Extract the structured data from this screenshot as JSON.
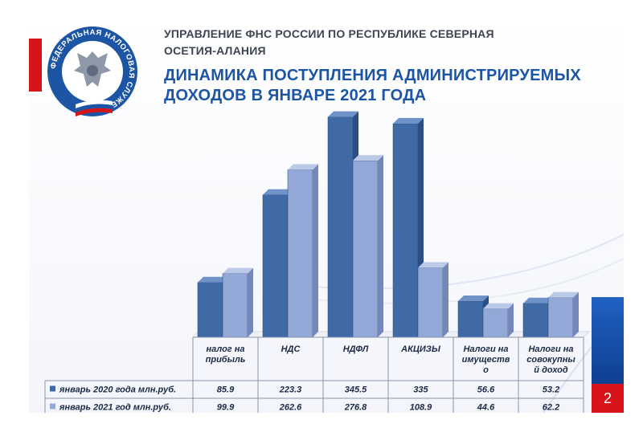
{
  "header": {
    "org_line1": "УПРАВЛЕНИЕ ФНС РОССИИ ПО РЕСПУБЛИКЕ СЕВЕРНАЯ",
    "org_line2": "ОСЕТИЯ-АЛАНИЯ",
    "title_line1": "ДИНАМИКА ПОСТУПЛЕНИЯ АДМИНИСТРИРУЕМЫХ",
    "title_line2": "ДОХОДОВ  В  ЯНВАРЕ 2021 ГОДА"
  },
  "logo": {
    "ring_text": "ФЕДЕРАЛЬНАЯ НАЛОГОВАЯ СЛУЖБА",
    "icon": "double-headed-eagle-emblem"
  },
  "slide_number": "2",
  "colors": {
    "series_2020": "#3f6aa6",
    "series_2021": "#93a8d6",
    "title_blue": "#1d55a5",
    "accent_red": "#d8141b"
  },
  "chart_data": {
    "type": "bar",
    "categories": [
      [
        "налог на",
        "прибыль"
      ],
      [
        "НДС"
      ],
      [
        "НДФЛ"
      ],
      [
        "АКЦИЗЫ"
      ],
      [
        "Налоги на",
        "имуществ",
        "о"
      ],
      [
        "Налоги на",
        "совокупны",
        "й доход"
      ]
    ],
    "series": [
      {
        "name": "январь 2020 года млн.руб.",
        "values": [
          85.9,
          223.3,
          345.5,
          335,
          56.6,
          53.2
        ]
      },
      {
        "name": "январь 2021 год млн.руб.",
        "values": [
          99.9,
          262.6,
          276.8,
          108.9,
          44.6,
          62.2
        ]
      }
    ],
    "value_labels": [
      [
        "85.9",
        "223.3",
        "345.5",
        "335",
        "56.6",
        "53.2"
      ],
      [
        "99.9",
        "262.6",
        "276.8",
        "108.9",
        "44.6",
        "62.2"
      ]
    ],
    "ylim": [
      0,
      350
    ],
    "grid": false,
    "legend": "data-table"
  }
}
